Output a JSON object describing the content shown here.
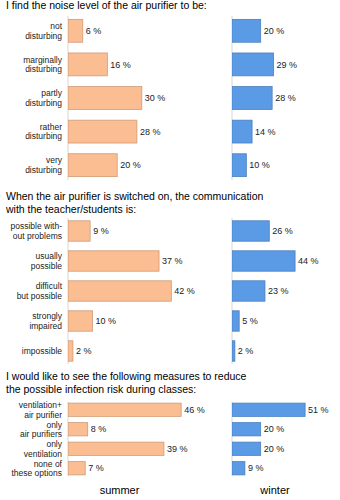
{
  "chart_data": [
    {
      "type": "bar",
      "orientation": "horizontal",
      "title": "I find the noise level of the air purifier to be:",
      "categories": [
        "not\ndisturbing",
        "marginally\ndisturbing",
        "partly\ndisturbing",
        "rather\ndisturbing",
        "very\ndisturbing"
      ],
      "values": [
        6,
        16,
        30,
        28,
        20
      ],
      "value_labels": [
        "6 %",
        "16 %",
        "30 %",
        "28 %",
        "20 %"
      ],
      "color": "#fbbd92",
      "xlim": [
        0,
        50
      ],
      "data_labels": true
    },
    {
      "type": "bar",
      "orientation": "horizontal",
      "values": [
        20,
        29,
        28,
        14,
        10
      ],
      "value_labels": [
        "20 %",
        "29 %",
        "28 %",
        "14 %",
        "10 %"
      ],
      "color": "#5b9be6",
      "xlim": [
        0,
        60
      ],
      "data_labels": true,
      "tick_labels": false
    },
    {
      "type": "bar",
      "orientation": "horizontal",
      "title": "When the air purifier is switched on, the communication\nwith the teacher/students is:",
      "categories": [
        "possible with-\nout problems",
        "usually\npossible",
        "difficult\nbut possible",
        "strongly\nimpaired",
        "impossible"
      ],
      "values": [
        9,
        37,
        42,
        10,
        2
      ],
      "value_labels": [
        "9 %",
        "37 %",
        "42 %",
        "10 %",
        "2 %"
      ],
      "color": "#fbbd92",
      "xlim": [
        0,
        50
      ],
      "data_labels": true
    },
    {
      "type": "bar",
      "orientation": "horizontal",
      "values": [
        26,
        44,
        23,
        5,
        2
      ],
      "value_labels": [
        "26 %",
        "44 %",
        "23 %",
        "5 %",
        "2 %"
      ],
      "color": "#5b9be6",
      "xlim": [
        0,
        60
      ],
      "data_labels": true,
      "tick_labels": false
    },
    {
      "type": "bar",
      "orientation": "horizontal",
      "title": "I would like to see the following measures to reduce\nthe possible infection risk during classes:",
      "categories": [
        "ventilation+\nair purifier",
        "only\nair purifiers",
        "only\nventilation",
        "none of\nthese options"
      ],
      "values": [
        46,
        8,
        39,
        7
      ],
      "value_labels": [
        "46 %",
        "8 %",
        "39 %",
        "7 %"
      ],
      "color": "#fbbd92",
      "xlim": [
        0,
        50
      ],
      "data_labels": true,
      "xlabel": "summer"
    },
    {
      "type": "bar",
      "orientation": "horizontal",
      "values": [
        51,
        20,
        20,
        9
      ],
      "value_labels": [
        "51 %",
        "20 %",
        "20 %",
        "9 %"
      ],
      "color": "#5b9be6",
      "xlim": [
        0,
        60
      ],
      "data_labels": true,
      "tick_labels": false,
      "xlabel": "winter"
    }
  ]
}
